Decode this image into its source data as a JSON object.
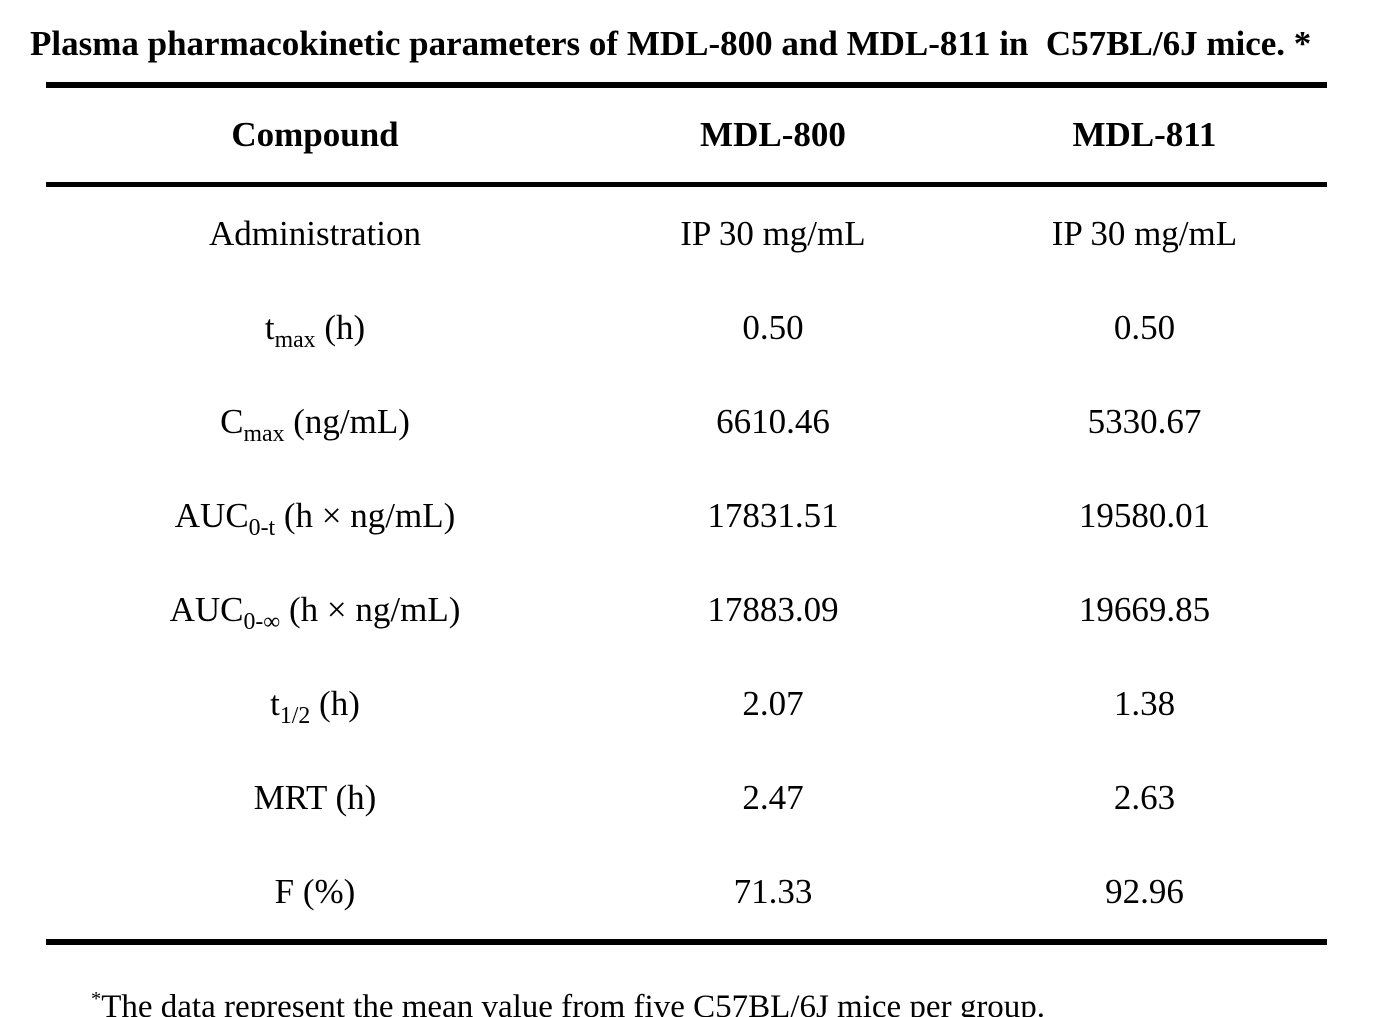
{
  "title": "Plasma pharmacokinetic parameters of MDL-800 and MDL-811 in  C57BL/6J mice. *",
  "table": {
    "columns": [
      "Compound",
      "MDL-800",
      "MDL-811"
    ],
    "rows": [
      {
        "label": {
          "pre": "Administration",
          "sub": "",
          "post": ""
        },
        "values": [
          "IP 30 mg/mL",
          "IP 30 mg/mL"
        ]
      },
      {
        "label": {
          "pre": "t",
          "sub": "max",
          "post": " (h)"
        },
        "values": [
          "0.50",
          "0.50"
        ]
      },
      {
        "label": {
          "pre": "C",
          "sub": "max",
          "post": " (ng/mL)"
        },
        "values": [
          "6610.46",
          "5330.67"
        ]
      },
      {
        "label": {
          "pre": "AUC",
          "sub": "0-t",
          "post": " (h × ng/mL)"
        },
        "values": [
          "17831.51",
          "19580.01"
        ]
      },
      {
        "label": {
          "pre": "AUC",
          "sub": "0-∞",
          "post": " (h × ng/mL)"
        },
        "values": [
          "17883.09",
          "19669.85"
        ]
      },
      {
        "label": {
          "pre": "t",
          "sub": "1/2",
          "post": " (h)"
        },
        "values": [
          "2.07",
          "1.38"
        ]
      },
      {
        "label": {
          "pre": "MRT",
          "sub": "",
          "post": " (h)"
        },
        "values": [
          "2.47",
          "2.63"
        ]
      },
      {
        "label": {
          "pre": "F",
          "sub": "",
          "post": " (%)"
        },
        "values": [
          "71.33",
          "92.96"
        ]
      }
    ]
  },
  "footnote": {
    "marker": "*",
    "text": "The data represent the mean value from five C57BL/6J mice per group."
  }
}
